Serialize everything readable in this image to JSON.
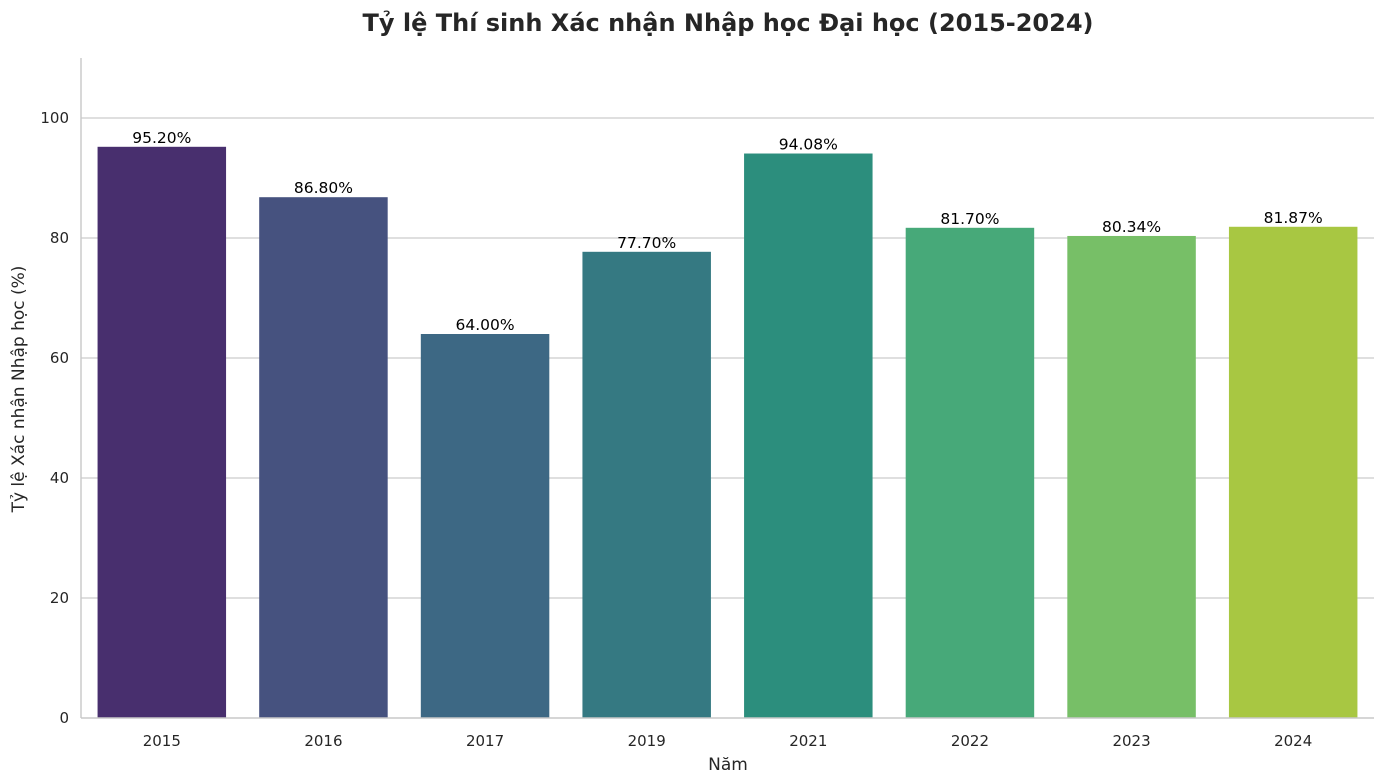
{
  "chart_data": {
    "type": "bar",
    "title": "Tỷ lệ Thí sinh Xác nhận Nhập học Đại học (2015-2024)",
    "xlabel": "Năm",
    "ylabel": "Tỷ lệ Xác nhận Nhập học (%)",
    "categories": [
      "2015",
      "2016",
      "2017",
      "2019",
      "2021",
      "2022",
      "2023",
      "2024"
    ],
    "values": [
      95.2,
      86.8,
      64.0,
      77.7,
      94.08,
      81.7,
      80.34,
      81.87
    ],
    "data_labels": [
      "95.20%",
      "86.80%",
      "64.00%",
      "77.70%",
      "94.08%",
      "81.70%",
      "80.34%",
      "81.87%"
    ],
    "ylim": [
      0,
      110
    ],
    "yticks": [
      0,
      20,
      40,
      60,
      80,
      100
    ],
    "grid": true,
    "colors": [
      "#482f6e",
      "#46527f",
      "#3d6884",
      "#357982",
      "#2c8e7d",
      "#47a979",
      "#77bf67",
      "#a8c742"
    ]
  }
}
